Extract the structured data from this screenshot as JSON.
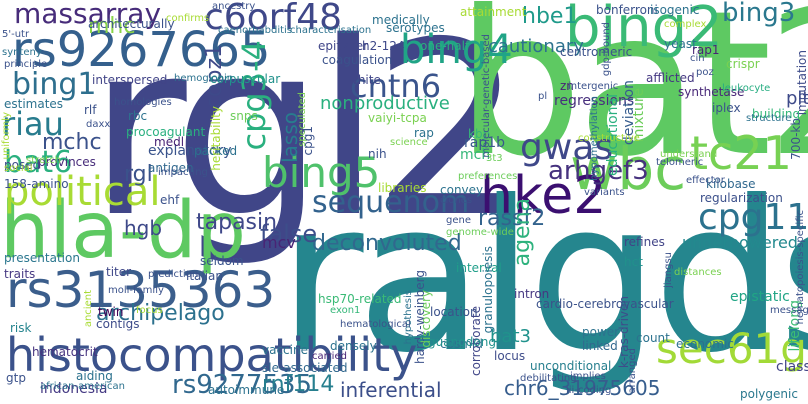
{
  "words": [
    {
      "text": "rgl2",
      "color": "#404688"
    },
    {
      "text": "bat2",
      "color": "#5ec962"
    },
    {
      "text": "ralgds",
      "color": "#25868e"
    },
    {
      "text": "hla-dp",
      "color": "#5ec962"
    },
    {
      "text": "histocompatibility",
      "color": "#3b528b"
    },
    {
      "text": "rs9267665",
      "color": "#35608d"
    },
    {
      "text": "bing2",
      "color": "#3aba76"
    },
    {
      "text": "rs3135363",
      "color": "#3b5e8c"
    },
    {
      "text": "wbc",
      "color": "#6ccd5a"
    },
    {
      "text": "hke2",
      "color": "#3b0f70"
    },
    {
      "text": "sec61g",
      "color": "#a2da37"
    },
    {
      "text": "political",
      "color": "#a8db34"
    },
    {
      "text": "bing5",
      "color": "#4fc16b"
    },
    {
      "text": "tc21",
      "color": "#77d153"
    },
    {
      "text": "cpg11",
      "color": "#2c728e"
    },
    {
      "text": "sequenom",
      "color": "#33628d"
    },
    {
      "text": "massarray",
      "color": "#472c7a"
    },
    {
      "text": "c6orf48",
      "color": "#3f4889"
    },
    {
      "text": "bing4",
      "color": "#20a486"
    },
    {
      "text": "bing1",
      "color": "#2e6f8e"
    },
    {
      "text": "riau",
      "color": "#287c8e"
    },
    {
      "text": "bat6",
      "color": "#2ab07f"
    },
    {
      "text": "cntn6",
      "color": "#3a548c"
    },
    {
      "text": "gwas",
      "color": "#3f4889"
    },
    {
      "text": "rs9277535",
      "color": "#31688e"
    },
    {
      "text": "cpg3-4",
      "color": "#2ab07f"
    },
    {
      "text": "archipelago",
      "color": "#2c718e"
    },
    {
      "text": "inferential",
      "color": "#3c4f8a"
    },
    {
      "text": "rnf114",
      "color": "#277f8e"
    },
    {
      "text": "chr6_31975605",
      "color": "#365d8d"
    },
    {
      "text": "deconvoluted",
      "color": "#31688e"
    },
    {
      "text": "arhgef3",
      "color": "#46327e"
    },
    {
      "text": "rassf2",
      "color": "#33638d"
    },
    {
      "text": "mhc",
      "color": "#89d548"
    },
    {
      "text": "bing3",
      "color": "#2a788e"
    },
    {
      "text": "hbe1",
      "color": "#1f9a8a"
    },
    {
      "text": "agena",
      "color": "#2db27d"
    },
    {
      "text": "false",
      "color": "#3d4e8a"
    },
    {
      "text": "tapasin",
      "color": "#3f4889"
    },
    {
      "text": "hgb",
      "color": "#3e4989"
    },
    {
      "text": "rgl",
      "color": "#3b528b"
    },
    {
      "text": "mchc",
      "color": "#3b528b"
    },
    {
      "text": "explanatory",
      "color": "#3a548c"
    },
    {
      "text": "cautionary",
      "color": "#2c718e"
    },
    {
      "text": "nonproductive",
      "color": "#2ab07f"
    },
    {
      "text": "lasso",
      "color": "#287c8e"
    },
    {
      "text": "copz1",
      "color": "#3e4989"
    },
    {
      "text": "underpowered",
      "color": "#23898e"
    },
    {
      "text": "cpg11 ",
      "color": "#2c728e"
    },
    {
      "text": "bat3",
      "color": "#20928c"
    },
    {
      "text": "plt",
      "color": "#3e4a89"
    },
    {
      "text": "mcv",
      "color": "#482475"
    },
    {
      "text": "indonesia",
      "color": "#443983"
    },
    {
      "text": "epistatic",
      "color": "#21a585"
    },
    {
      "text": "lifelong",
      "color": "#3dbc74"
    },
    {
      "text": "class",
      "color": "#414487"
    },
    {
      "text": "polygenic",
      "color": "#2a788e"
    },
    {
      "text": "regularization",
      "color": "#3c508b"
    },
    {
      "text": "synthetase",
      "color": "#482878"
    },
    {
      "text": "mch",
      "color": "#35b779"
    },
    {
      "text": "rap1b",
      "color": "#38588c"
    },
    {
      "text": "regressions",
      "color": "#472f7d"
    },
    {
      "text": "educational",
      "color": "#2ab07f"
    },
    {
      "text": "deviation",
      "color": "#365c8d"
    },
    {
      "text": "iplex",
      "color": "#3b528b"
    },
    {
      "text": "building",
      "color": "#35b779"
    },
    {
      "text": "afflicted",
      "color": "#453882"
    },
    {
      "text": "leukocyte",
      "color": "#26ad81"
    },
    {
      "text": "crispr",
      "color": "#7ad151"
    },
    {
      "text": "hsp70-related",
      "color": "#3aba76"
    },
    {
      "text": "cardio-cerebrovascular",
      "color": "#3b528b"
    },
    {
      "text": "hct",
      "color": "#21918c"
    },
    {
      "text": "refines",
      "color": "#414487"
    },
    {
      "text": "interval",
      "color": "#1f9e89"
    },
    {
      "text": "cosmid",
      "color": "#2c728e"
    },
    {
      "text": "locus",
      "color": "#3e4c8a"
    },
    {
      "text": "intron",
      "color": "#453781"
    },
    {
      "text": "linked",
      "color": "#31688e"
    },
    {
      "text": "power",
      "color": "#2c728e"
    },
    {
      "text": "count",
      "color": "#2c728e"
    },
    {
      "text": "economic",
      "color": "#2c718e"
    },
    {
      "text": "k-ras-driven",
      "color": "#3e4c8a"
    },
    {
      "text": "vaccine",
      "color": "#2c728e"
    },
    {
      "text": "contigs",
      "color": "#3e4c8a"
    },
    {
      "text": "twin",
      "color": "#440154"
    },
    {
      "text": "titer",
      "color": "#3f4889"
    },
    {
      "text": "traits",
      "color": "#453882"
    },
    {
      "text": "presentation",
      "color": "#2a768e"
    },
    {
      "text": "risk",
      "color": "#25848e"
    },
    {
      "text": "hematocrit",
      "color": "#46337f"
    },
    {
      "text": "aiding",
      "color": "#2c728e"
    },
    {
      "text": "gtp",
      "color": "#3b528b"
    },
    {
      "text": "sle-associated",
      "color": "#31688e"
    },
    {
      "text": "corroborate",
      "color": "#404688"
    },
    {
      "text": "unconditional",
      "color": "#277f8e"
    },
    {
      "text": "debilitating",
      "color": "#3b528b"
    },
    {
      "text": "autoimmune",
      "color": "#2c728e"
    },
    {
      "text": "exon1",
      "color": "#35b779"
    },
    {
      "text": "seldom",
      "color": "#3a548c"
    },
    {
      "text": "italian",
      "color": "#3b528b"
    },
    {
      "text": "ehf",
      "color": "#3b528b"
    },
    {
      "text": "antigen",
      "color": "#31688e"
    },
    {
      "text": "medl",
      "color": "#482475"
    },
    {
      "text": "provinces",
      "color": "#472c7a"
    },
    {
      "text": "posed",
      "color": "#3e4c8a"
    },
    {
      "text": "158-amino",
      "color": "#3b528b"
    },
    {
      "text": "packed",
      "color": "#2c718e"
    },
    {
      "text": "snps",
      "color": "#6ccd5a"
    },
    {
      "text": "procoagulant",
      "color": "#2ab07f"
    },
    {
      "text": "rbc",
      "color": "#2c728e"
    },
    {
      "text": "estimates",
      "color": "#2c728e"
    },
    {
      "text": "interspersed",
      "color": "#414487"
    },
    {
      "text": "corpuscular",
      "color": "#21918c"
    },
    {
      "text": "coagulation",
      "color": "#3b528b"
    },
    {
      "text": "white",
      "color": "#404688"
    },
    {
      "text": "h2-124",
      "color": "#3e4989"
    },
    {
      "text": "one-half",
      "color": "#2ab07f"
    },
    {
      "text": "centromeric",
      "color": "#3b528b"
    },
    {
      "text": "yeast",
      "color": "#2c728e"
    },
    {
      "text": "architecturally",
      "color": "#3b528b"
    },
    {
      "text": "bonferroni",
      "color": "#3b528b"
    },
    {
      "text": "isogenic",
      "color": "#2c728e"
    },
    {
      "text": "rap1",
      "color": "#482475"
    },
    {
      "text": "serotypes",
      "color": "#2c728e"
    },
    {
      "text": "poz",
      "color": "#3b528b"
    },
    {
      "text": "kbp",
      "color": "#35b779"
    },
    {
      "text": "nih",
      "color": "#3b528b"
    },
    {
      "text": "rap",
      "color": "#2c728e"
    },
    {
      "text": "kilobase",
      "color": "#31688e"
    },
    {
      "text": "epityper",
      "color": "#404688"
    },
    {
      "text": "medically",
      "color": "#2c728e"
    },
    {
      "text": "attainment",
      "color": "#a8db34"
    },
    {
      "text": "imputation",
      "color": "#3e4c8a"
    },
    {
      "text": "700-kb",
      "color": "#3b528b"
    },
    {
      "text": "structure",
      "color": "#2c728e"
    },
    {
      "text": "mixture",
      "color": "#6ccd5a"
    },
    {
      "text": "telomeric",
      "color": "#3b528b"
    },
    {
      "text": "zn",
      "color": "#482475"
    },
    {
      "text": "intergenic",
      "color": "#3b528b"
    },
    {
      "text": "pl",
      "color": "#3b528b"
    },
    {
      "text": "guangdong",
      "color": "#21918c"
    },
    {
      "text": "hardy-weinberg",
      "color": "#3b528b"
    },
    {
      "text": "granulopoiesis",
      "color": "#2c728e"
    },
    {
      "text": "hypothesis",
      "color": "#2c728e"
    },
    {
      "text": "discovery",
      "color": "#6ccd5a"
    },
    {
      "text": "location",
      "color": "#3b528b"
    },
    {
      "text": "hematological",
      "color": "#3b528b"
    },
    {
      "text": "densely",
      "color": "#2c728e"
    },
    {
      "text": "carried",
      "color": "#482475"
    },
    {
      "text": "gene",
      "color": "#3b528b"
    },
    {
      "text": "genome-wide",
      "color": "#6ccd5a"
    },
    {
      "text": "convey",
      "color": "#2c728e"
    },
    {
      "text": "clones",
      "color": "#3b528b"
    },
    {
      "text": "variants",
      "color": "#3b528b"
    },
    {
      "text": "implies",
      "color": "#3b528b"
    },
    {
      "text": "arranged",
      "color": "#3b528b"
    },
    {
      "text": "distances",
      "color": "#7ad151"
    },
    {
      "text": "effector",
      "color": "#3b528b"
    },
    {
      "text": "understand",
      "color": "#7ad151"
    },
    {
      "text": "jiangsu",
      "color": "#3b528b"
    },
    {
      "text": "libraries",
      "color": "#a8db34"
    },
    {
      "text": "preferences",
      "color": "#6ccd5a"
    },
    {
      "text": "3t3",
      "color": "#6ccd5a"
    },
    {
      "text": "vaiyi-tcpa",
      "color": "#7ad151"
    },
    {
      "text": "science",
      "color": "#7ad151"
    },
    {
      "text": "heritability",
      "color": "#a8db34"
    },
    {
      "text": "speculated",
      "color": "#7ad151"
    },
    {
      "text": "constructive",
      "color": "#a8db34"
    },
    {
      "text": "hypomethylation",
      "color": "#2c728e"
    },
    {
      "text": "molecular-genetic-based",
      "color": "#3b528b"
    },
    {
      "text": "gdp-bound",
      "color": "#3b528b"
    },
    {
      "text": "ancestry",
      "color": "#3b528b"
    },
    {
      "text": "confirms",
      "color": "#a8db34"
    },
    {
      "text": "homologies",
      "color": "#3b528b"
    },
    {
      "text": "hemoglobin",
      "color": "#2c728e"
    },
    {
      "text": "caenorhabditis",
      "color": "#2c728e"
    },
    {
      "text": "characterisation",
      "color": "#2c728e"
    },
    {
      "text": "cpg1",
      "color": "#3b528b"
    },
    {
      "text": "5'-utr",
      "color": "#3b528b"
    },
    {
      "text": "synteny",
      "color": "#2c728e"
    },
    {
      "text": "principle",
      "color": "#3b528b"
    },
    {
      "text": "rlf",
      "color": "#3b528b"
    },
    {
      "text": "daxx",
      "color": "#3b528b"
    },
    {
      "text": "uniformly",
      "color": "#a8db34"
    },
    {
      "text": "stretch",
      "color": "#7ad151"
    },
    {
      "text": "social",
      "color": "#a8db34"
    },
    {
      "text": "impacting",
      "color": "#3b528b"
    },
    {
      "text": "moli-family",
      "color": "#3b528b"
    },
    {
      "text": "prediction",
      "color": "#3b528b"
    },
    {
      "text": "focus",
      "color": "#a8db34"
    },
    {
      "text": "ancient",
      "color": "#a8db34"
    },
    {
      "text": "african-american",
      "color": "#2c728e"
    },
    {
      "text": "iii-coding",
      "color": "#3b528b"
    },
    {
      "text": "message",
      "color": "#3b528b"
    },
    {
      "text": "hematopoiesis-specific",
      "color": "#3b528b"
    },
    {
      "text": "complex",
      "color": "#a8db34"
    },
    {
      "text": "cin",
      "color": "#3b528b"
    }
  ]
}
